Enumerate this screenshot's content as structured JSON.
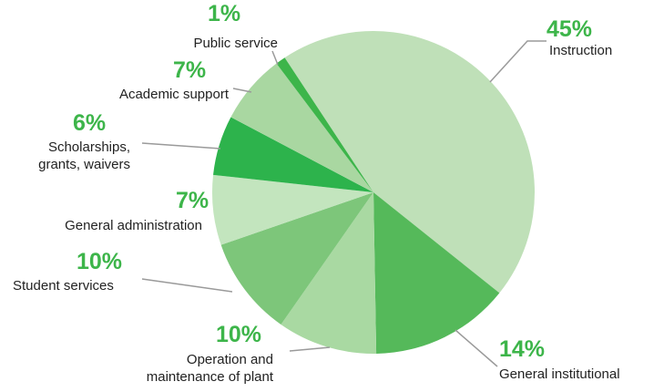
{
  "chart_data": {
    "type": "pie",
    "categories": [
      "Instruction",
      "General institutional",
      "Operation and maintenance of plant",
      "Student services",
      "General administration",
      "Scholarships, grants, waivers",
      "Academic support",
      "Public service"
    ],
    "values": [
      45,
      14,
      10,
      10,
      7,
      6,
      7,
      1
    ],
    "value_labels": [
      "45%",
      "14%",
      "10%",
      "10%",
      "7%",
      "6%",
      "7%",
      "1%"
    ],
    "colors": [
      "#bfe0b8",
      "#55b95a",
      "#a9d9a2",
      "#7dc67a",
      "#c3e5be",
      "#2db34c",
      "#a9d7a1",
      "#3db54a"
    ]
  }
}
